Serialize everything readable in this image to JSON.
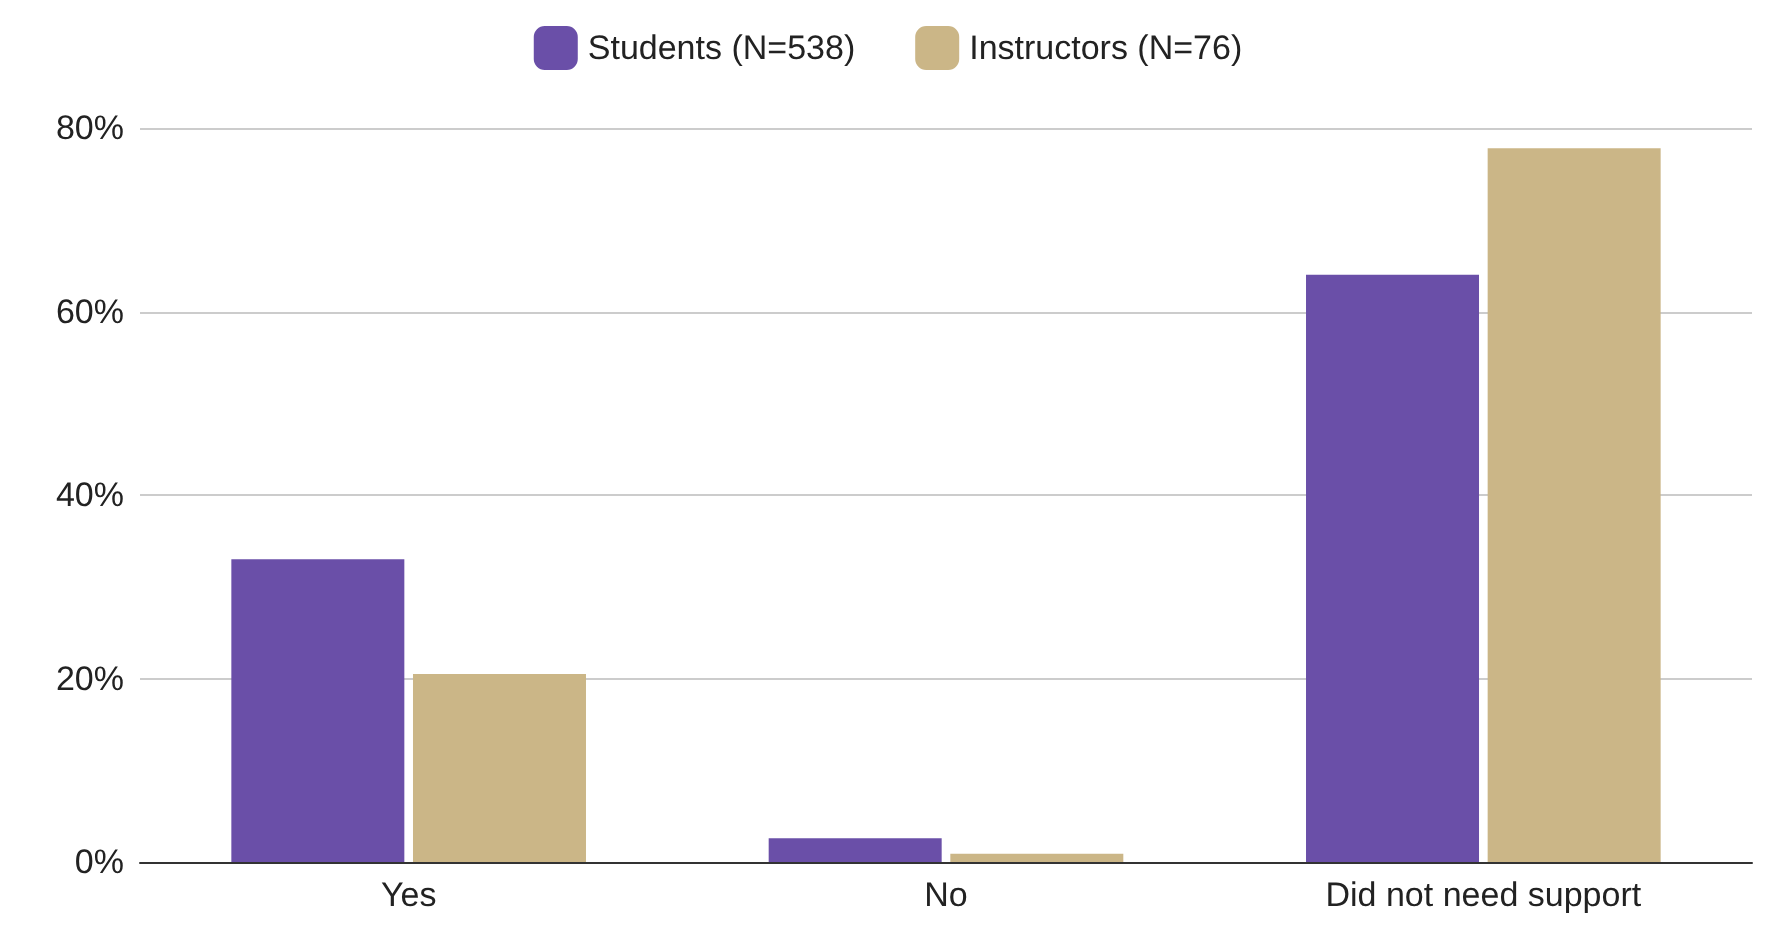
{
  "chart_data": {
    "type": "bar",
    "categories": [
      "Yes",
      "No",
      "Did not need support"
    ],
    "series": [
      {
        "name": "Students (N=538)",
        "color": "#6a4fa8",
        "values": [
          33,
          2.6,
          64
        ]
      },
      {
        "name": "Instructors (N=76)",
        "color": "#cbb687",
        "values": [
          20.5,
          0.9,
          77.8
        ]
      }
    ],
    "ylim": [
      0,
      80
    ],
    "yticks": [
      {
        "value": 0,
        "label": "0%"
      },
      {
        "value": 20,
        "label": "20%"
      },
      {
        "value": 40,
        "label": "40%"
      },
      {
        "value": 60,
        "label": "60%"
      },
      {
        "value": 80,
        "label": "80%"
      }
    ],
    "grid": "y",
    "legend": "top"
  }
}
